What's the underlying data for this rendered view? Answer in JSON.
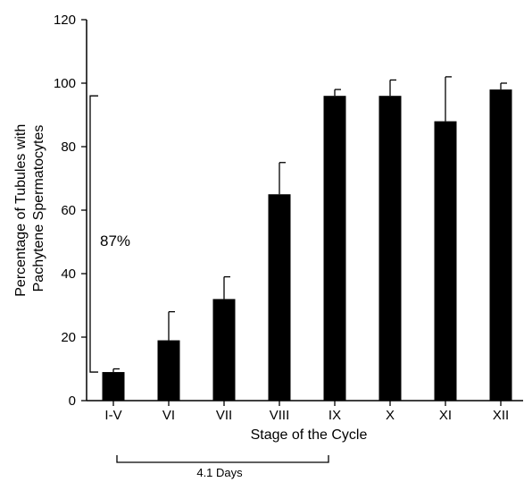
{
  "chart_data": {
    "type": "bar",
    "categories": [
      "I-V",
      "VI",
      "VII",
      "VIII",
      "IX",
      "X",
      "XI",
      "XII"
    ],
    "values": [
      9,
      19,
      32,
      65,
      96,
      96,
      88,
      98
    ],
    "errors": [
      1,
      9,
      7,
      10,
      2,
      5,
      14,
      2
    ],
    "ylim": [
      0,
      120
    ],
    "yticks": [
      0,
      20,
      40,
      60,
      80,
      100,
      120
    ],
    "xlabel": "Stage of the Cycle",
    "ylabel_lines": [
      "Percentage of Tubules with",
      "Pachytene Spermatocytes"
    ],
    "grid": false,
    "bar_color": "#000000",
    "annotations": {
      "increase_label": "87%",
      "increase_from": 9,
      "increase_to": 96,
      "duration_label": "4.1 Days",
      "duration_from": "I-V",
      "duration_to": "IX"
    }
  }
}
